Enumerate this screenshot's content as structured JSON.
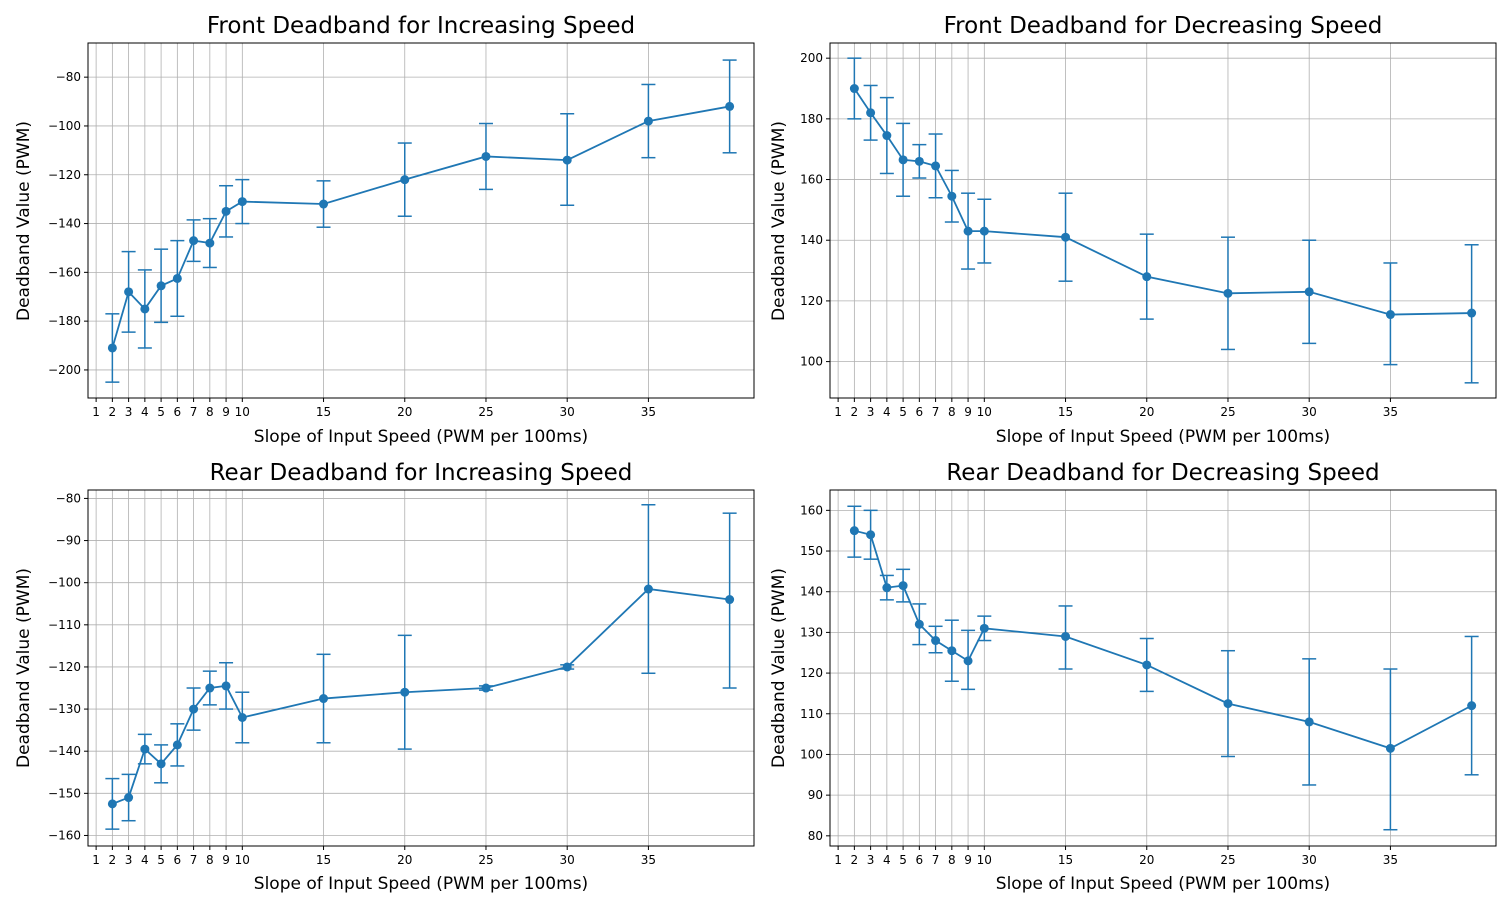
{
  "chart_data": [
    {
      "type": "line",
      "title": "Front Deadband for Increasing Speed",
      "xlabel": "Slope of Input Speed (PWM per 100ms)",
      "ylabel": "Deadband Value (PWM)",
      "xticks": [
        1,
        2,
        3,
        4,
        5,
        6,
        7,
        8,
        9,
        10,
        15,
        20,
        25,
        30,
        35
      ],
      "xlim": [
        0.5,
        41.5
      ],
      "ylim": [
        -211.5,
        -66
      ],
      "yticks": [
        -200,
        -180,
        -160,
        -140,
        -120,
        -100,
        -80
      ],
      "grid": true,
      "color": "#1f77b4",
      "points": [
        {
          "x": 2,
          "y": -191,
          "err_low": -205,
          "err_high": -177
        },
        {
          "x": 3,
          "y": -168,
          "err_low": -184.5,
          "err_high": -151.5
        },
        {
          "x": 4,
          "y": -175,
          "err_low": -191,
          "err_high": -159
        },
        {
          "x": 5,
          "y": -165.5,
          "err_low": -180.5,
          "err_high": -150.5
        },
        {
          "x": 6,
          "y": -162.5,
          "err_low": -178,
          "err_high": -147
        },
        {
          "x": 7,
          "y": -147,
          "err_low": -155.5,
          "err_high": -138.5
        },
        {
          "x": 8,
          "y": -148,
          "err_low": -158,
          "err_high": -138
        },
        {
          "x": 9,
          "y": -135,
          "err_low": -145.5,
          "err_high": -124.5
        },
        {
          "x": 10,
          "y": -131,
          "err_low": -140,
          "err_high": -122
        },
        {
          "x": 15,
          "y": -132,
          "err_low": -141.5,
          "err_high": -122.5
        },
        {
          "x": 20,
          "y": -122,
          "err_low": -137,
          "err_high": -107
        },
        {
          "x": 25,
          "y": -112.5,
          "err_low": -126,
          "err_high": -99
        },
        {
          "x": 30,
          "y": -114,
          "err_low": -132.5,
          "err_high": -95
        },
        {
          "x": 35,
          "y": -98,
          "err_low": -113,
          "err_high": -83
        },
        {
          "x": 40,
          "y": -92,
          "err_low": -111,
          "err_high": -73
        }
      ]
    },
    {
      "type": "line",
      "title": "Front Deadband for Decreasing Speed",
      "xlabel": "Slope of Input Speed (PWM per 100ms)",
      "ylabel": "Deadband Value (PWM)",
      "xticks": [
        1,
        2,
        3,
        4,
        5,
        6,
        7,
        8,
        9,
        10,
        15,
        20,
        25,
        30,
        35
      ],
      "xlim": [
        0.5,
        41.5
      ],
      "ylim": [
        88,
        205
      ],
      "yticks": [
        100,
        120,
        140,
        160,
        180,
        200
      ],
      "grid": true,
      "color": "#1f77b4",
      "points": [
        {
          "x": 2,
          "y": 190,
          "err_low": 180,
          "err_high": 200
        },
        {
          "x": 3,
          "y": 182,
          "err_low": 173,
          "err_high": 191
        },
        {
          "x": 4,
          "y": 174.5,
          "err_low": 162,
          "err_high": 187
        },
        {
          "x": 5,
          "y": 166.5,
          "err_low": 154.5,
          "err_high": 178.5
        },
        {
          "x": 6,
          "y": 166,
          "err_low": 160.5,
          "err_high": 171.5
        },
        {
          "x": 7,
          "y": 164.5,
          "err_low": 154,
          "err_high": 175
        },
        {
          "x": 8,
          "y": 154.5,
          "err_low": 146,
          "err_high": 163
        },
        {
          "x": 9,
          "y": 143,
          "err_low": 130.5,
          "err_high": 155.5
        },
        {
          "x": 10,
          "y": 143,
          "err_low": 132.5,
          "err_high": 153.5
        },
        {
          "x": 15,
          "y": 141,
          "err_low": 126.5,
          "err_high": 155.5
        },
        {
          "x": 20,
          "y": 128,
          "err_low": 114,
          "err_high": 142
        },
        {
          "x": 25,
          "y": 122.5,
          "err_low": 104,
          "err_high": 141
        },
        {
          "x": 30,
          "y": 123,
          "err_low": 106,
          "err_high": 140
        },
        {
          "x": 35,
          "y": 115.5,
          "err_low": 99,
          "err_high": 132.5
        },
        {
          "x": 40,
          "y": 116,
          "err_low": 93,
          "err_high": 138.5
        }
      ]
    },
    {
      "type": "line",
      "title": "Rear Deadband for Increasing Speed",
      "xlabel": "Slope of Input Speed (PWM per 100ms)",
      "ylabel": "Deadband Value (PWM)",
      "xticks": [
        1,
        2,
        3,
        4,
        5,
        6,
        7,
        8,
        9,
        10,
        15,
        20,
        25,
        30,
        35
      ],
      "xlim": [
        0.5,
        41.5
      ],
      "ylim": [
        -162.5,
        -78
      ],
      "yticks": [
        -160,
        -150,
        -140,
        -130,
        -120,
        -110,
        -100,
        -90,
        -80
      ],
      "grid": true,
      "color": "#1f77b4",
      "points": [
        {
          "x": 2,
          "y": -152.5,
          "err_low": -158.5,
          "err_high": -146.5
        },
        {
          "x": 3,
          "y": -151,
          "err_low": -156.5,
          "err_high": -145.5
        },
        {
          "x": 4,
          "y": -139.5,
          "err_low": -143,
          "err_high": -136
        },
        {
          "x": 5,
          "y": -143,
          "err_low": -147.5,
          "err_high": -138.5
        },
        {
          "x": 6,
          "y": -138.5,
          "err_low": -143.5,
          "err_high": -133.5
        },
        {
          "x": 7,
          "y": -130,
          "err_low": -135,
          "err_high": -125
        },
        {
          "x": 8,
          "y": -125,
          "err_low": -129,
          "err_high": -121
        },
        {
          "x": 9,
          "y": -124.5,
          "err_low": -130,
          "err_high": -119
        },
        {
          "x": 10,
          "y": -132,
          "err_low": -138,
          "err_high": -126
        },
        {
          "x": 15,
          "y": -127.5,
          "err_low": -138,
          "err_high": -117
        },
        {
          "x": 20,
          "y": -126,
          "err_low": -139.5,
          "err_high": -112.5
        },
        {
          "x": 25,
          "y": -125,
          "err_low": -125.5,
          "err_high": -124.5
        },
        {
          "x": 30,
          "y": -120,
          "err_low": -120.5,
          "err_high": -119.5
        },
        {
          "x": 35,
          "y": -101.5,
          "err_low": -121.5,
          "err_high": -81.5
        },
        {
          "x": 40,
          "y": -104,
          "err_low": -125,
          "err_high": -83.5
        }
      ]
    },
    {
      "type": "line",
      "title": "Rear Deadband for Decreasing Speed",
      "xlabel": "Slope of Input Speed (PWM per 100ms)",
      "ylabel": "Deadband Value (PWM)",
      "xticks": [
        1,
        2,
        3,
        4,
        5,
        6,
        7,
        8,
        9,
        10,
        15,
        20,
        25,
        30,
        35
      ],
      "xlim": [
        0.5,
        41.5
      ],
      "ylim": [
        77.5,
        165
      ],
      "yticks": [
        80,
        90,
        100,
        110,
        120,
        130,
        140,
        150,
        160
      ],
      "grid": true,
      "color": "#1f77b4",
      "points": [
        {
          "x": 2,
          "y": 155,
          "err_low": 148.5,
          "err_high": 161
        },
        {
          "x": 3,
          "y": 154,
          "err_low": 148,
          "err_high": 160
        },
        {
          "x": 4,
          "y": 141,
          "err_low": 138,
          "err_high": 144
        },
        {
          "x": 5,
          "y": 141.5,
          "err_low": 137.5,
          "err_high": 145.5
        },
        {
          "x": 6,
          "y": 132,
          "err_low": 127,
          "err_high": 137
        },
        {
          "x": 7,
          "y": 128,
          "err_low": 125,
          "err_high": 131.5
        },
        {
          "x": 8,
          "y": 125.5,
          "err_low": 118,
          "err_high": 133
        },
        {
          "x": 9,
          "y": 123,
          "err_low": 116,
          "err_high": 130.5
        },
        {
          "x": 10,
          "y": 131,
          "err_low": 128,
          "err_high": 134
        },
        {
          "x": 15,
          "y": 129,
          "err_low": 121,
          "err_high": 136.5
        },
        {
          "x": 20,
          "y": 122,
          "err_low": 115.5,
          "err_high": 128.5
        },
        {
          "x": 25,
          "y": 112.5,
          "err_low": 99.5,
          "err_high": 125.5
        },
        {
          "x": 30,
          "y": 108,
          "err_low": 92.5,
          "err_high": 123.5
        },
        {
          "x": 35,
          "y": 101.5,
          "err_low": 81.5,
          "err_high": 121
        },
        {
          "x": 40,
          "y": 112,
          "err_low": 95,
          "err_high": 129
        }
      ]
    }
  ]
}
